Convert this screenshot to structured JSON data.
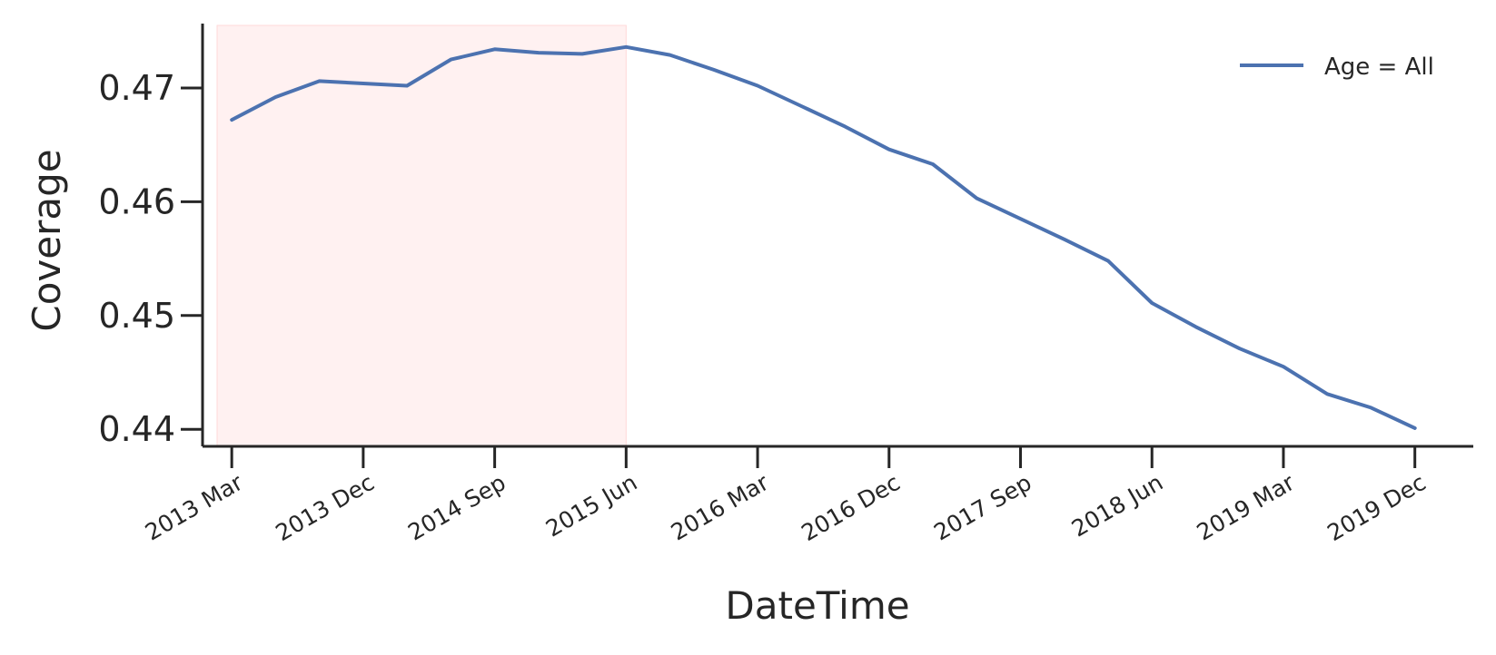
{
  "chart_data": {
    "type": "line",
    "title": "",
    "xlabel": "DateTime",
    "ylabel": "Coverage",
    "legend": {
      "placement": "top-right",
      "entries": [
        "Age = All"
      ]
    },
    "grid": false,
    "x_ticks": [
      "2013 Mar",
      "2013 Dec",
      "2014 Sep",
      "2015 Jun",
      "2016 Mar",
      "2016 Dec",
      "2017 Sep",
      "2018 Jun",
      "2019 Mar",
      "2019 Dec"
    ],
    "y_ticks": [
      "0.44",
      "0.45",
      "0.46",
      "0.47"
    ],
    "ylim": [
      0.4385,
      0.4755
    ],
    "xlim": [
      "2013-01",
      "2020-04"
    ],
    "shaded_region": {
      "start": "2013-01",
      "end": "2015-06",
      "color": "#fff1f1"
    },
    "series": [
      {
        "name": "Age = All",
        "color": "#4c72b0",
        "x": [
          "2013-03",
          "2013-06",
          "2013-09",
          "2013-12",
          "2014-03",
          "2014-06",
          "2014-09",
          "2014-12",
          "2015-03",
          "2015-06",
          "2015-09",
          "2015-12",
          "2016-03",
          "2016-06",
          "2016-09",
          "2016-12",
          "2017-03",
          "2017-06",
          "2017-09",
          "2017-12",
          "2018-03",
          "2018-06",
          "2018-09",
          "2018-12",
          "2019-03",
          "2019-06",
          "2019-09",
          "2019-12"
        ],
        "values": [
          0.4672,
          0.4692,
          0.4706,
          0.4704,
          0.4702,
          0.4725,
          0.4734,
          0.4731,
          0.473,
          0.4736,
          0.4729,
          0.4716,
          0.4702,
          0.4684,
          0.4666,
          0.4646,
          0.4633,
          0.4603,
          0.4585,
          0.4567,
          0.4548,
          0.4511,
          0.449,
          0.4471,
          0.4455,
          0.4431,
          0.4419,
          0.4401
        ]
      }
    ]
  }
}
